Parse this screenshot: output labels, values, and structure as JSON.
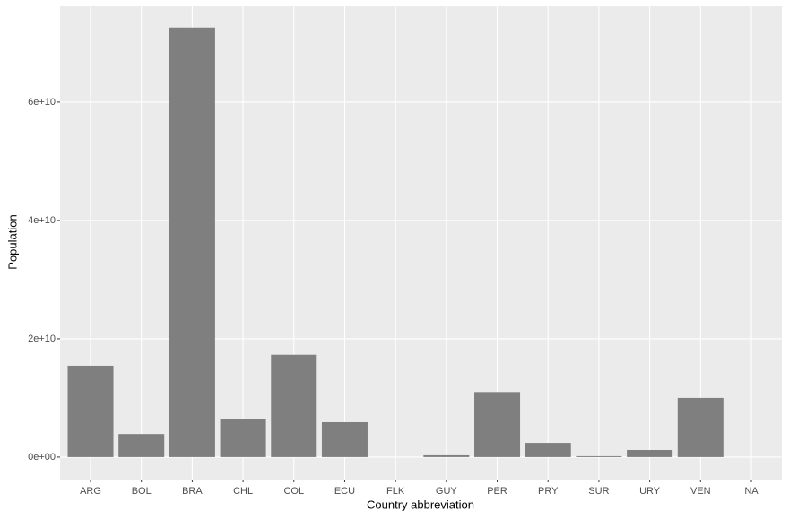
{
  "chart_data": {
    "type": "bar",
    "x_label": "Country abbreviation",
    "y_label": "Population",
    "categories": [
      "ARG",
      "BOL",
      "BRA",
      "CHL",
      "COL",
      "ECU",
      "FLK",
      "GUY",
      "PER",
      "PRY",
      "SUR",
      "URY",
      "VEN",
      "NA"
    ],
    "values": [
      15450000000,
      3900000000,
      72600000000,
      6500000000,
      17300000000,
      5900000000,
      0,
      300000000,
      11000000000,
      2400000000,
      150000000,
      1200000000,
      10000000000,
      0
    ],
    "color": "#7f7f7f",
    "ylim": [
      -3800000000,
      76200000000
    ],
    "yticks": [
      {
        "value": 0,
        "label": "0e+00"
      },
      {
        "value": 20000000000,
        "label": "2e+10"
      },
      {
        "value": 40000000000,
        "label": "4e+10"
      },
      {
        "value": 60000000000,
        "label": "6e+10"
      }
    ],
    "grid": true
  }
}
